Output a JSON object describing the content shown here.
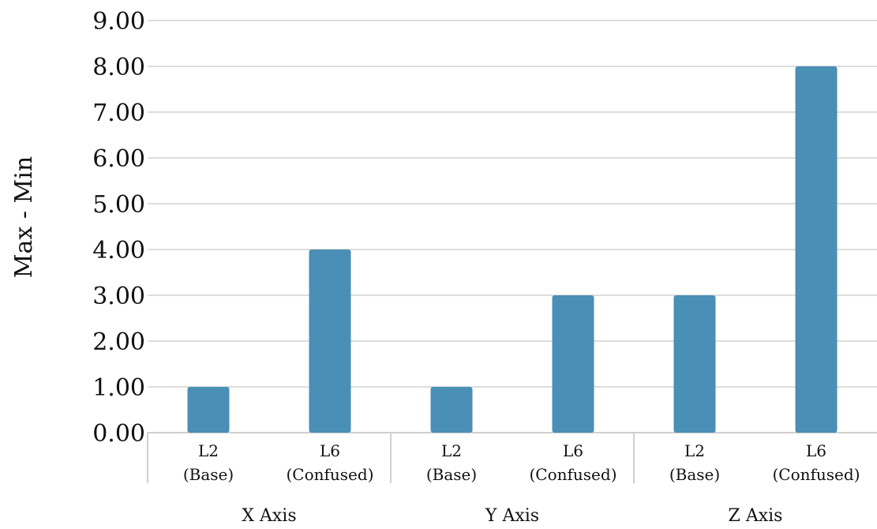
{
  "chart_data": {
    "type": "bar",
    "title": "",
    "ylabel": "Max - Min",
    "xlabel": "",
    "ylim": [
      0,
      9
    ],
    "yticks": [
      "0.00",
      "1.00",
      "2.00",
      "3.00",
      "4.00",
      "5.00",
      "6.00",
      "7.00",
      "8.00",
      "9.00"
    ],
    "grid": true,
    "legend": "none",
    "bar_color": "#4a8fb5",
    "groups": [
      "X Axis",
      "Y Axis",
      "Z Axis"
    ],
    "categories": [
      [
        "L2",
        "(Base)"
      ],
      [
        "L6",
        "(Confused)"
      ],
      [
        "L2",
        "(Base)"
      ],
      [
        "L6",
        "(Confused)"
      ],
      [
        "L2",
        "(Base)"
      ],
      [
        "L6",
        "(Confused)"
      ]
    ],
    "values": [
      1,
      4,
      1,
      3,
      3,
      8
    ]
  }
}
